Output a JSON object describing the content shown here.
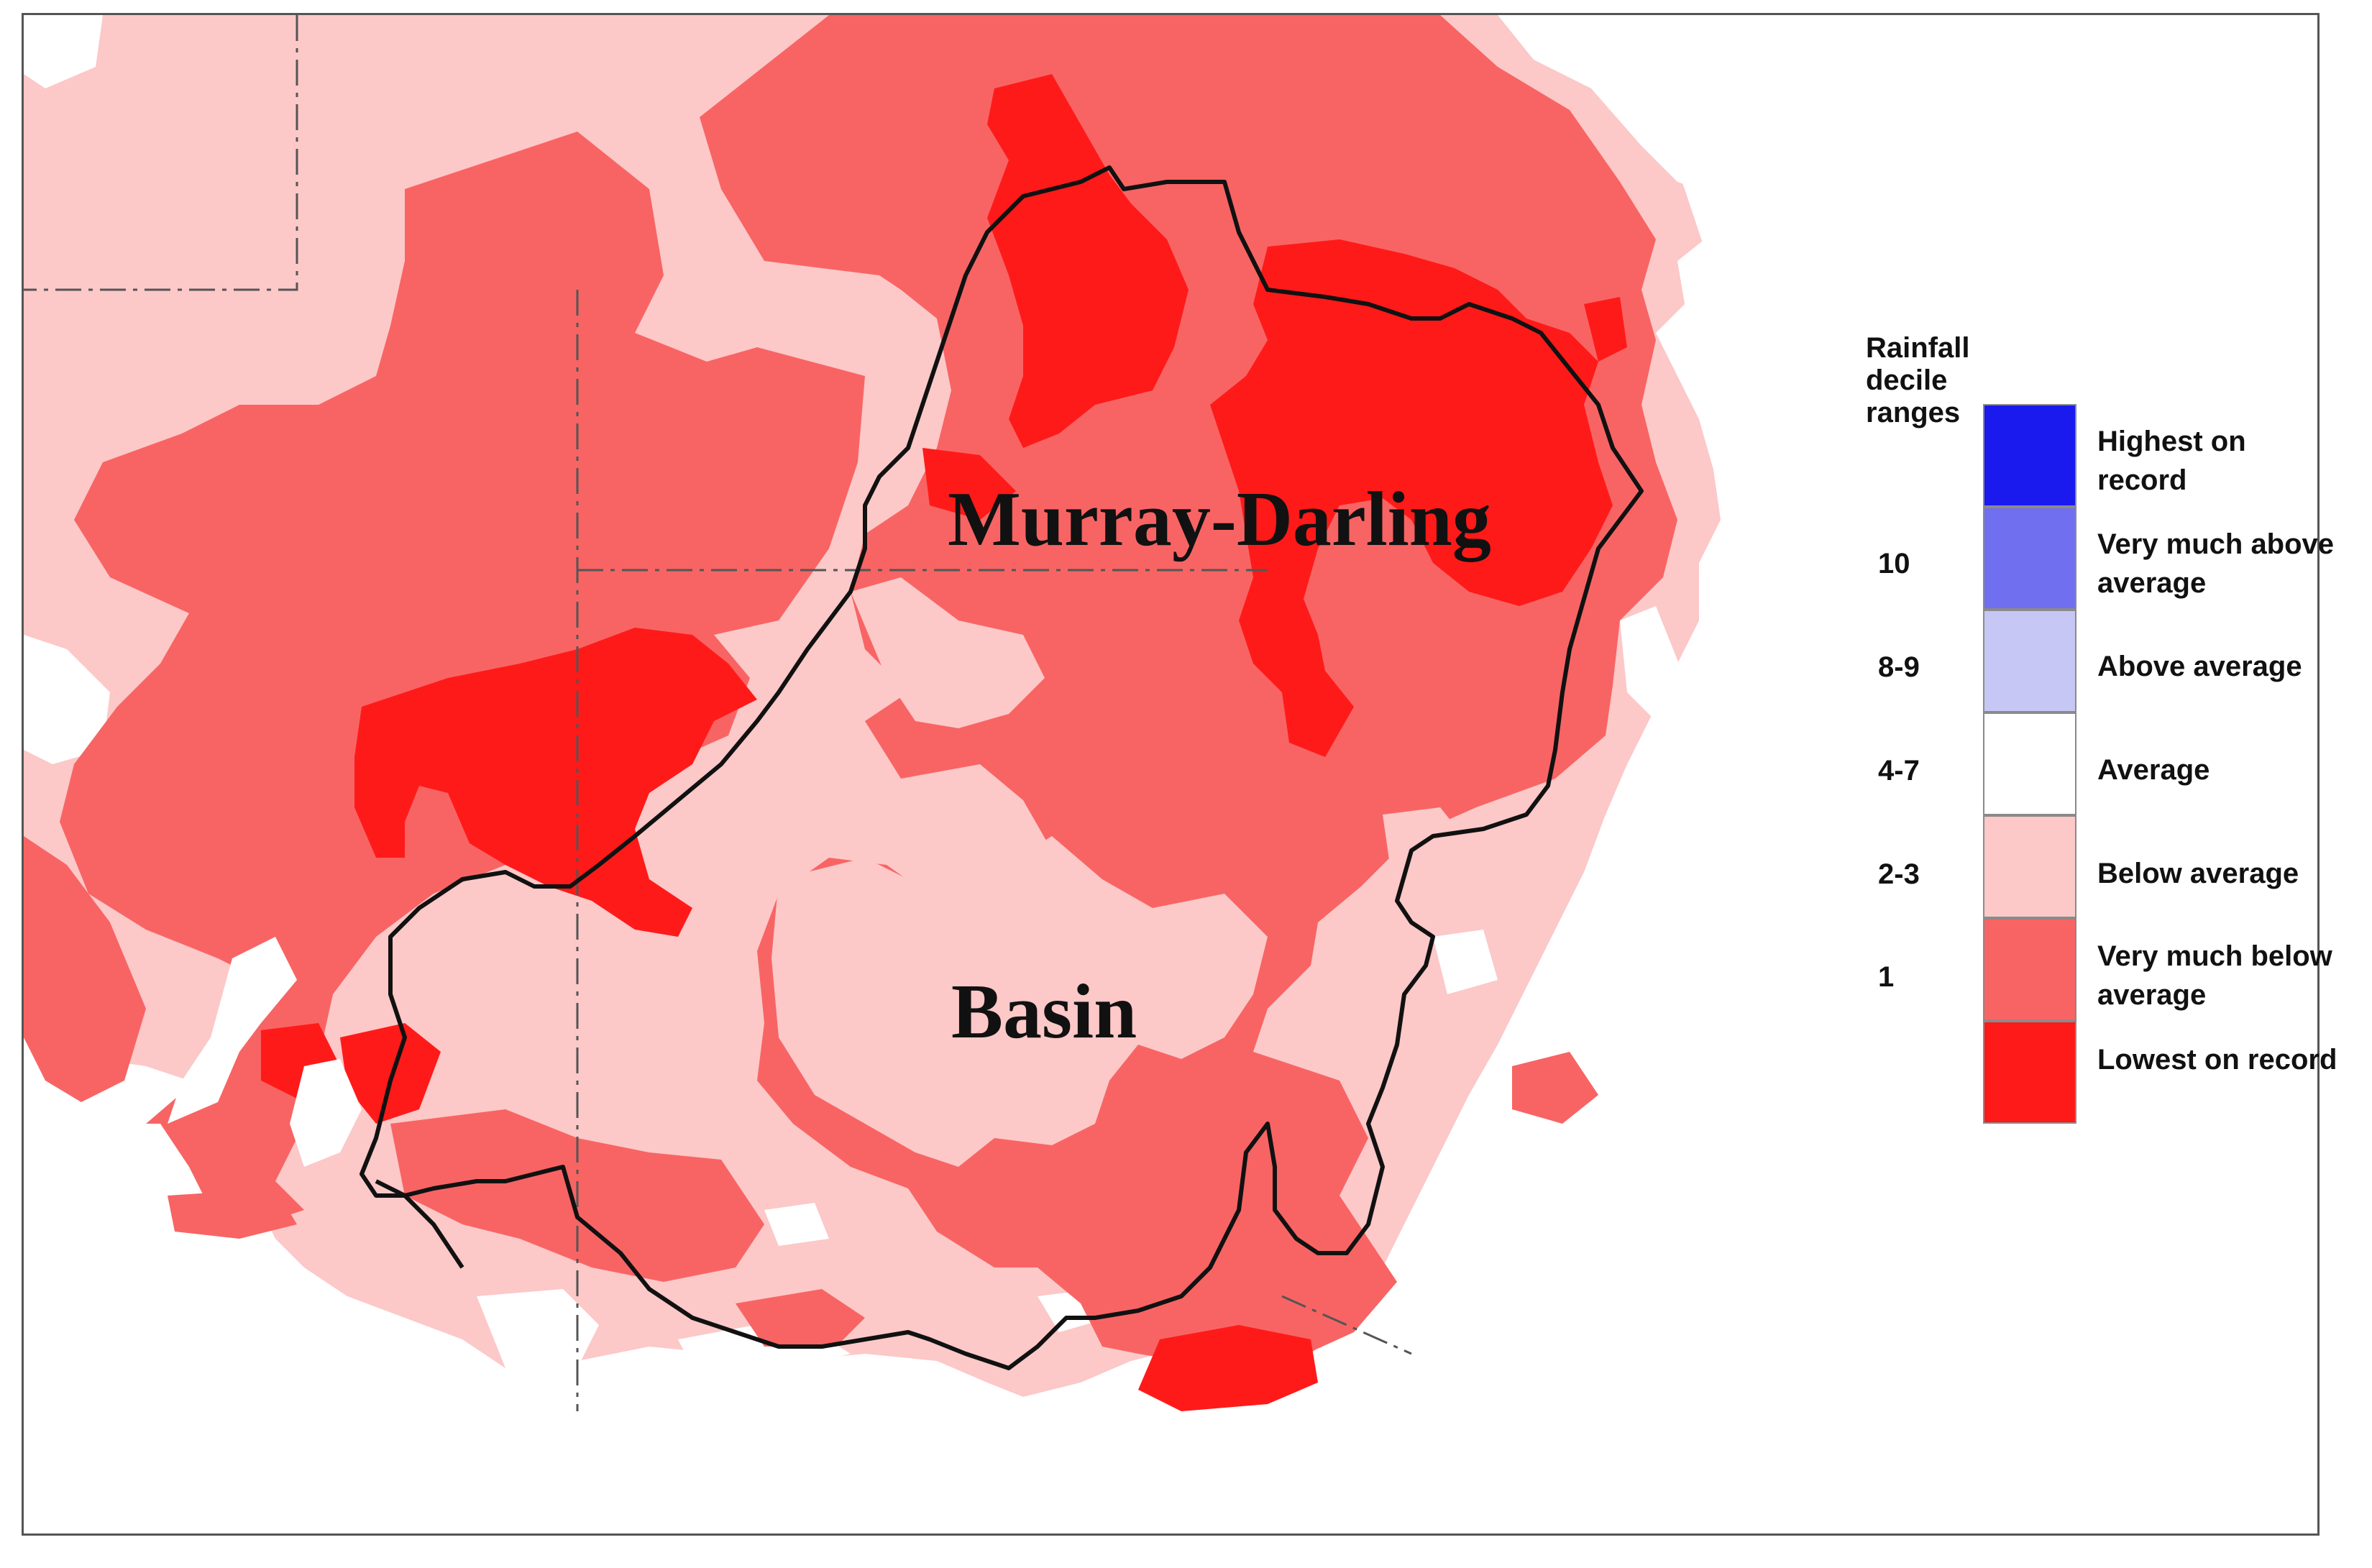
{
  "map": {
    "labels": [
      "Murray-Darling",
      "Basin"
    ],
    "colors": {
      "lowest": "#ff1a1a",
      "very_much_below": "#f86464",
      "below": "#fcc8c8",
      "average": "#ffffff",
      "above": "#c7c7f5",
      "very_much_above": "#6f6ff0",
      "highest": "#1a1aee",
      "boundary": "#111111",
      "state_border": "#555555"
    }
  },
  "legend": {
    "title": "Rainfall decile ranges",
    "items": [
      {
        "range": "",
        "label": "Highest on record",
        "color": "#1a1aee"
      },
      {
        "range": "10",
        "label": "Very much above average",
        "color": "#6f6ff0"
      },
      {
        "range": "8-9",
        "label": "Above average",
        "color": "#c7c7f5"
      },
      {
        "range": "4-7",
        "label": "Average",
        "color": "#ffffff"
      },
      {
        "range": "2-3",
        "label": "Below average",
        "color": "#fcc8c8"
      },
      {
        "range": "1",
        "label": "Very much below average",
        "color": "#f86464"
      },
      {
        "range": "",
        "label": "Lowest on record",
        "color": "#ff1a1a"
      }
    ]
  }
}
